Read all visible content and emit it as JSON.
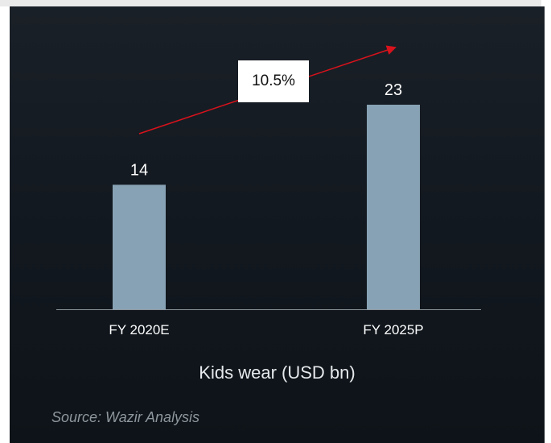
{
  "chart_data": {
    "type": "bar",
    "categories": [
      "FY 2020E",
      "FY 2025P"
    ],
    "values": [
      14,
      23
    ],
    "title": "Kids wear (USD bn)",
    "annotation": "10.5%",
    "ylim": [
      0,
      23
    ],
    "grid": false,
    "legend": "none"
  },
  "source": "Source: Wazir Analysis",
  "colors": {
    "bar": "#87a2b4",
    "arrow": "#d8121c",
    "background": "#131920"
  }
}
